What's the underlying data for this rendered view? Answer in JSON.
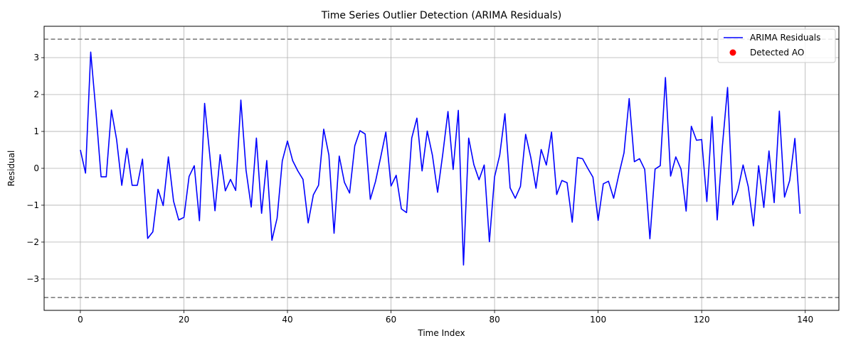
{
  "chart_data": {
    "type": "line",
    "title": "Time Series Outlier Detection (ARIMA Residuals)",
    "xlabel": "Time Index",
    "ylabel": "Residual",
    "xlim": [
      -7,
      146.5
    ],
    "ylim": [
      -3.85,
      3.85
    ],
    "xticks": [
      0,
      20,
      40,
      60,
      80,
      100,
      120,
      140
    ],
    "yticks": [
      -3,
      -2,
      -1,
      0,
      1,
      2,
      3
    ],
    "grid": true,
    "legend_position": "top-right",
    "series": [
      {
        "name": "ARIMA Residuals",
        "color": "#0000ff",
        "x": [
          0,
          1,
          2,
          3,
          4,
          5,
          6,
          7,
          8,
          9,
          10,
          11,
          12,
          13,
          14,
          15,
          16,
          17,
          18,
          19,
          20,
          21,
          22,
          23,
          24,
          25,
          26,
          27,
          28,
          29,
          30,
          31,
          32,
          33,
          34,
          35,
          36,
          37,
          38,
          39,
          40,
          41,
          42,
          43,
          44,
          45,
          46,
          47,
          48,
          49,
          50,
          51,
          52,
          53,
          54,
          55,
          56,
          57,
          58,
          59,
          60,
          61,
          62,
          63,
          64,
          65,
          66,
          67,
          68,
          69,
          70,
          71,
          72,
          73,
          74,
          75,
          76,
          77,
          78,
          79,
          80,
          81,
          82,
          83,
          84,
          85,
          86,
          87,
          88,
          89,
          90,
          91,
          92,
          93,
          94,
          95,
          96,
          97,
          98,
          99,
          100,
          101,
          102,
          103,
          104,
          105,
          106,
          107,
          108,
          109,
          110,
          111,
          112,
          113,
          114,
          115,
          116,
          117,
          118,
          119,
          120,
          121,
          122,
          123,
          124,
          125,
          126,
          127,
          128,
          129,
          130,
          131,
          132,
          133,
          134,
          135,
          136,
          137,
          138,
          139
        ],
        "y": [
          0.5,
          -0.13,
          3.15,
          1.55,
          -0.23,
          -0.23,
          1.58,
          0.78,
          -0.46,
          0.54,
          -0.46,
          -0.46,
          0.25,
          -1.9,
          -1.72,
          -0.57,
          -1.01,
          0.31,
          -0.89,
          -1.4,
          -1.33,
          -0.22,
          0.07,
          -1.42,
          1.76,
          0.35,
          -1.15,
          0.37,
          -0.61,
          -0.3,
          -0.6,
          1.85,
          -0.05,
          -1.05,
          0.82,
          -1.22,
          0.21,
          -1.95,
          -1.35,
          0.2,
          0.74,
          0.21,
          -0.07,
          -0.3,
          -1.48,
          -0.72,
          -0.46,
          1.06,
          0.36,
          -1.76,
          0.33,
          -0.38,
          -0.67,
          0.61,
          1.02,
          0.93,
          -0.84,
          -0.36,
          0.3,
          0.98,
          -0.48,
          -0.19,
          -1.1,
          -1.2,
          0.82,
          1.36,
          -0.07,
          1.01,
          0.35,
          -0.65,
          0.39,
          1.54,
          -0.03,
          1.57,
          -2.62,
          0.82,
          0.1,
          -0.31,
          0.09,
          -1.99,
          -0.23,
          0.36,
          1.48,
          -0.53,
          -0.81,
          -0.49,
          0.92,
          0.29,
          -0.54,
          0.51,
          0.09,
          0.98,
          -0.71,
          -0.33,
          -0.39,
          -1.46,
          0.29,
          0.26,
          0.0,
          -0.24,
          -1.41,
          -0.42,
          -0.35,
          -0.81,
          -0.17,
          0.42,
          1.89,
          0.18,
          0.26,
          -0.03,
          -1.91,
          -0.02,
          0.07,
          2.46,
          -0.21,
          0.31,
          -0.02,
          -1.16,
          1.14,
          0.76,
          0.78,
          -0.9,
          1.4,
          -1.4,
          0.6,
          2.19,
          -0.99,
          -0.59,
          0.09,
          -0.5,
          -1.56,
          0.07,
          -1.06,
          0.47,
          -0.93,
          1.55,
          -0.78,
          -0.33,
          0.81,
          -1.23
        ]
      },
      {
        "name": "Detected AO",
        "color": "#ff0000",
        "x": [],
        "y": []
      }
    ],
    "reference_lines": [
      {
        "y": 3.5,
        "style": "dashed",
        "color": "#808080"
      },
      {
        "y": -3.5,
        "style": "dashed",
        "color": "#808080"
      }
    ]
  }
}
